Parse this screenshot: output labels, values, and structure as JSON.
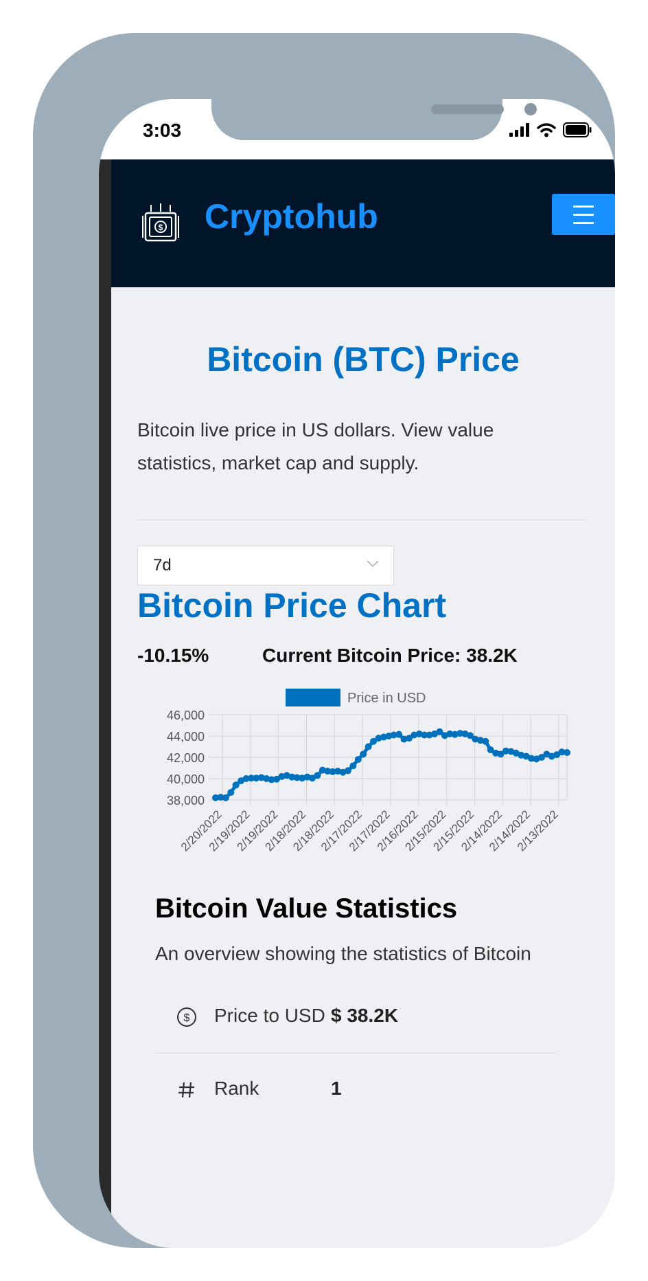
{
  "status_bar": {
    "time": "3:03"
  },
  "navbar": {
    "brand": "Cryptohub",
    "menu_icon": "hamburger-icon",
    "logo_icon": "money-icon",
    "accent": "#1890ff",
    "background": "#001529"
  },
  "header": {
    "title": "Bitcoin (BTC) Price",
    "description": "Bitcoin live price in US dollars. View value statistics, market cap and supply."
  },
  "timeframe": {
    "selected": "7d"
  },
  "chart_section": {
    "title": "Bitcoin Price Chart",
    "change": "-10.15%",
    "current_price_label": "Current Bitcoin Price: 38.2K"
  },
  "chart_data": {
    "type": "line",
    "legend": [
      "Price in USD"
    ],
    "legend_position": "top",
    "grid": true,
    "color": "#0071bd",
    "ylim": [
      38000,
      46000
    ],
    "y_ticks": [
      "46,000",
      "44,000",
      "42,000",
      "40,000",
      "38,000"
    ],
    "x_tick_labels": [
      "2/20/2022",
      "2/19/2022",
      "2/19/2022",
      "2/18/2022",
      "2/18/2022",
      "2/17/2022",
      "2/17/2022",
      "2/16/2022",
      "2/15/2022",
      "2/15/2022",
      "2/14/2022",
      "2/14/2022",
      "2/13/2022"
    ],
    "series": [
      {
        "name": "Price in USD",
        "values": [
          38200,
          38250,
          38200,
          38700,
          39400,
          39800,
          40000,
          40050,
          40050,
          40100,
          40000,
          39900,
          39950,
          40200,
          40300,
          40150,
          40100,
          40050,
          40150,
          40050,
          40300,
          40800,
          40700,
          40650,
          40700,
          40600,
          40750,
          41200,
          41800,
          42300,
          43000,
          43500,
          43800,
          43900,
          44000,
          44100,
          44150,
          43700,
          43800,
          44100,
          44200,
          44100,
          44100,
          44200,
          44400,
          44050,
          44200,
          44150,
          44250,
          44200,
          44050,
          43700,
          43600,
          43500,
          42700,
          42400,
          42300,
          42600,
          42550,
          42400,
          42200,
          42100,
          41900,
          41850,
          42000,
          42300,
          42100,
          42250,
          42500,
          42450
        ]
      }
    ]
  },
  "stats": {
    "title": "Bitcoin Value Statistics",
    "description": "An overview showing the statistics of Bitcoin",
    "rows": [
      {
        "icon": "dollar-circle-icon",
        "label": "Price to USD",
        "value": "$ 38.2K"
      },
      {
        "icon": "number-icon",
        "label": "Rank",
        "value": "1"
      }
    ]
  }
}
